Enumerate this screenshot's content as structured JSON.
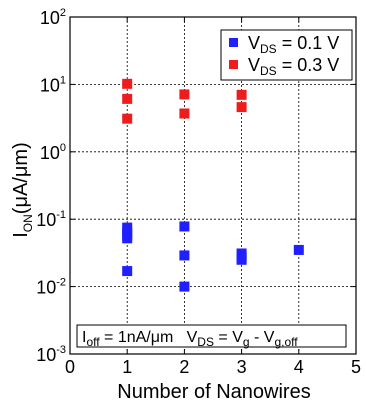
{
  "chart_data": {
    "type": "scatter",
    "xlabel": "Number of Nanowires",
    "ylabel": {
      "main": "I",
      "sub": "ON",
      "rest": "(μA/μm)"
    },
    "xlim": [
      0,
      5
    ],
    "ylim": [
      0.001,
      100
    ],
    "yscale": "log",
    "grid": true,
    "legend_position": "top-right",
    "xticks": [
      "0",
      "1",
      "2",
      "3",
      "4",
      "5"
    ],
    "yticks": [
      {
        "value": 0.001,
        "base": "10",
        "exp": "-3"
      },
      {
        "value": 0.01,
        "base": "10",
        "exp": "-2"
      },
      {
        "value": 0.1,
        "base": "10",
        "exp": "-1"
      },
      {
        "value": 1,
        "base": "10",
        "exp": "0"
      },
      {
        "value": 10,
        "base": "10",
        "exp": "1"
      },
      {
        "value": 100,
        "base": "10",
        "exp": "2"
      }
    ],
    "series": [
      {
        "legend": {
          "pre": "V",
          "sub": "DS",
          "post": " = 0.1 V"
        },
        "color": "#1f1fff",
        "points": [
          {
            "x": 1,
            "y": 0.075
          },
          {
            "x": 1,
            "y": 0.065
          },
          {
            "x": 1,
            "y": 0.057
          },
          {
            "x": 1,
            "y": 0.052
          },
          {
            "x": 1,
            "y": 0.017
          },
          {
            "x": 2,
            "y": 0.078
          },
          {
            "x": 2,
            "y": 0.029
          },
          {
            "x": 2,
            "y": 0.01
          },
          {
            "x": 3,
            "y": 0.031
          },
          {
            "x": 3,
            "y": 0.027
          },
          {
            "x": 3,
            "y": 0.025
          },
          {
            "x": 4,
            "y": 0.035
          }
        ]
      },
      {
        "legend": {
          "pre": "V",
          "sub": "DS",
          "post": " = 0.3 V"
        },
        "color": "#ee1c1c",
        "points": [
          {
            "x": 1,
            "y": 10.2
          },
          {
            "x": 1,
            "y": 6.1
          },
          {
            "x": 1,
            "y": 3.1
          },
          {
            "x": 2,
            "y": 7.1
          },
          {
            "x": 2,
            "y": 3.7
          },
          {
            "x": 3,
            "y": 7.0
          },
          {
            "x": 3,
            "y": 4.6
          }
        ]
      }
    ],
    "annotation": {
      "p1": "I",
      "p1_sub": "off",
      "p2": " = 1nA/μm   V",
      "p2_sub": "DS",
      "p3": " = V",
      "p3_sub": "g",
      "p4": " - V",
      "p4_sub": "g,off"
    }
  }
}
